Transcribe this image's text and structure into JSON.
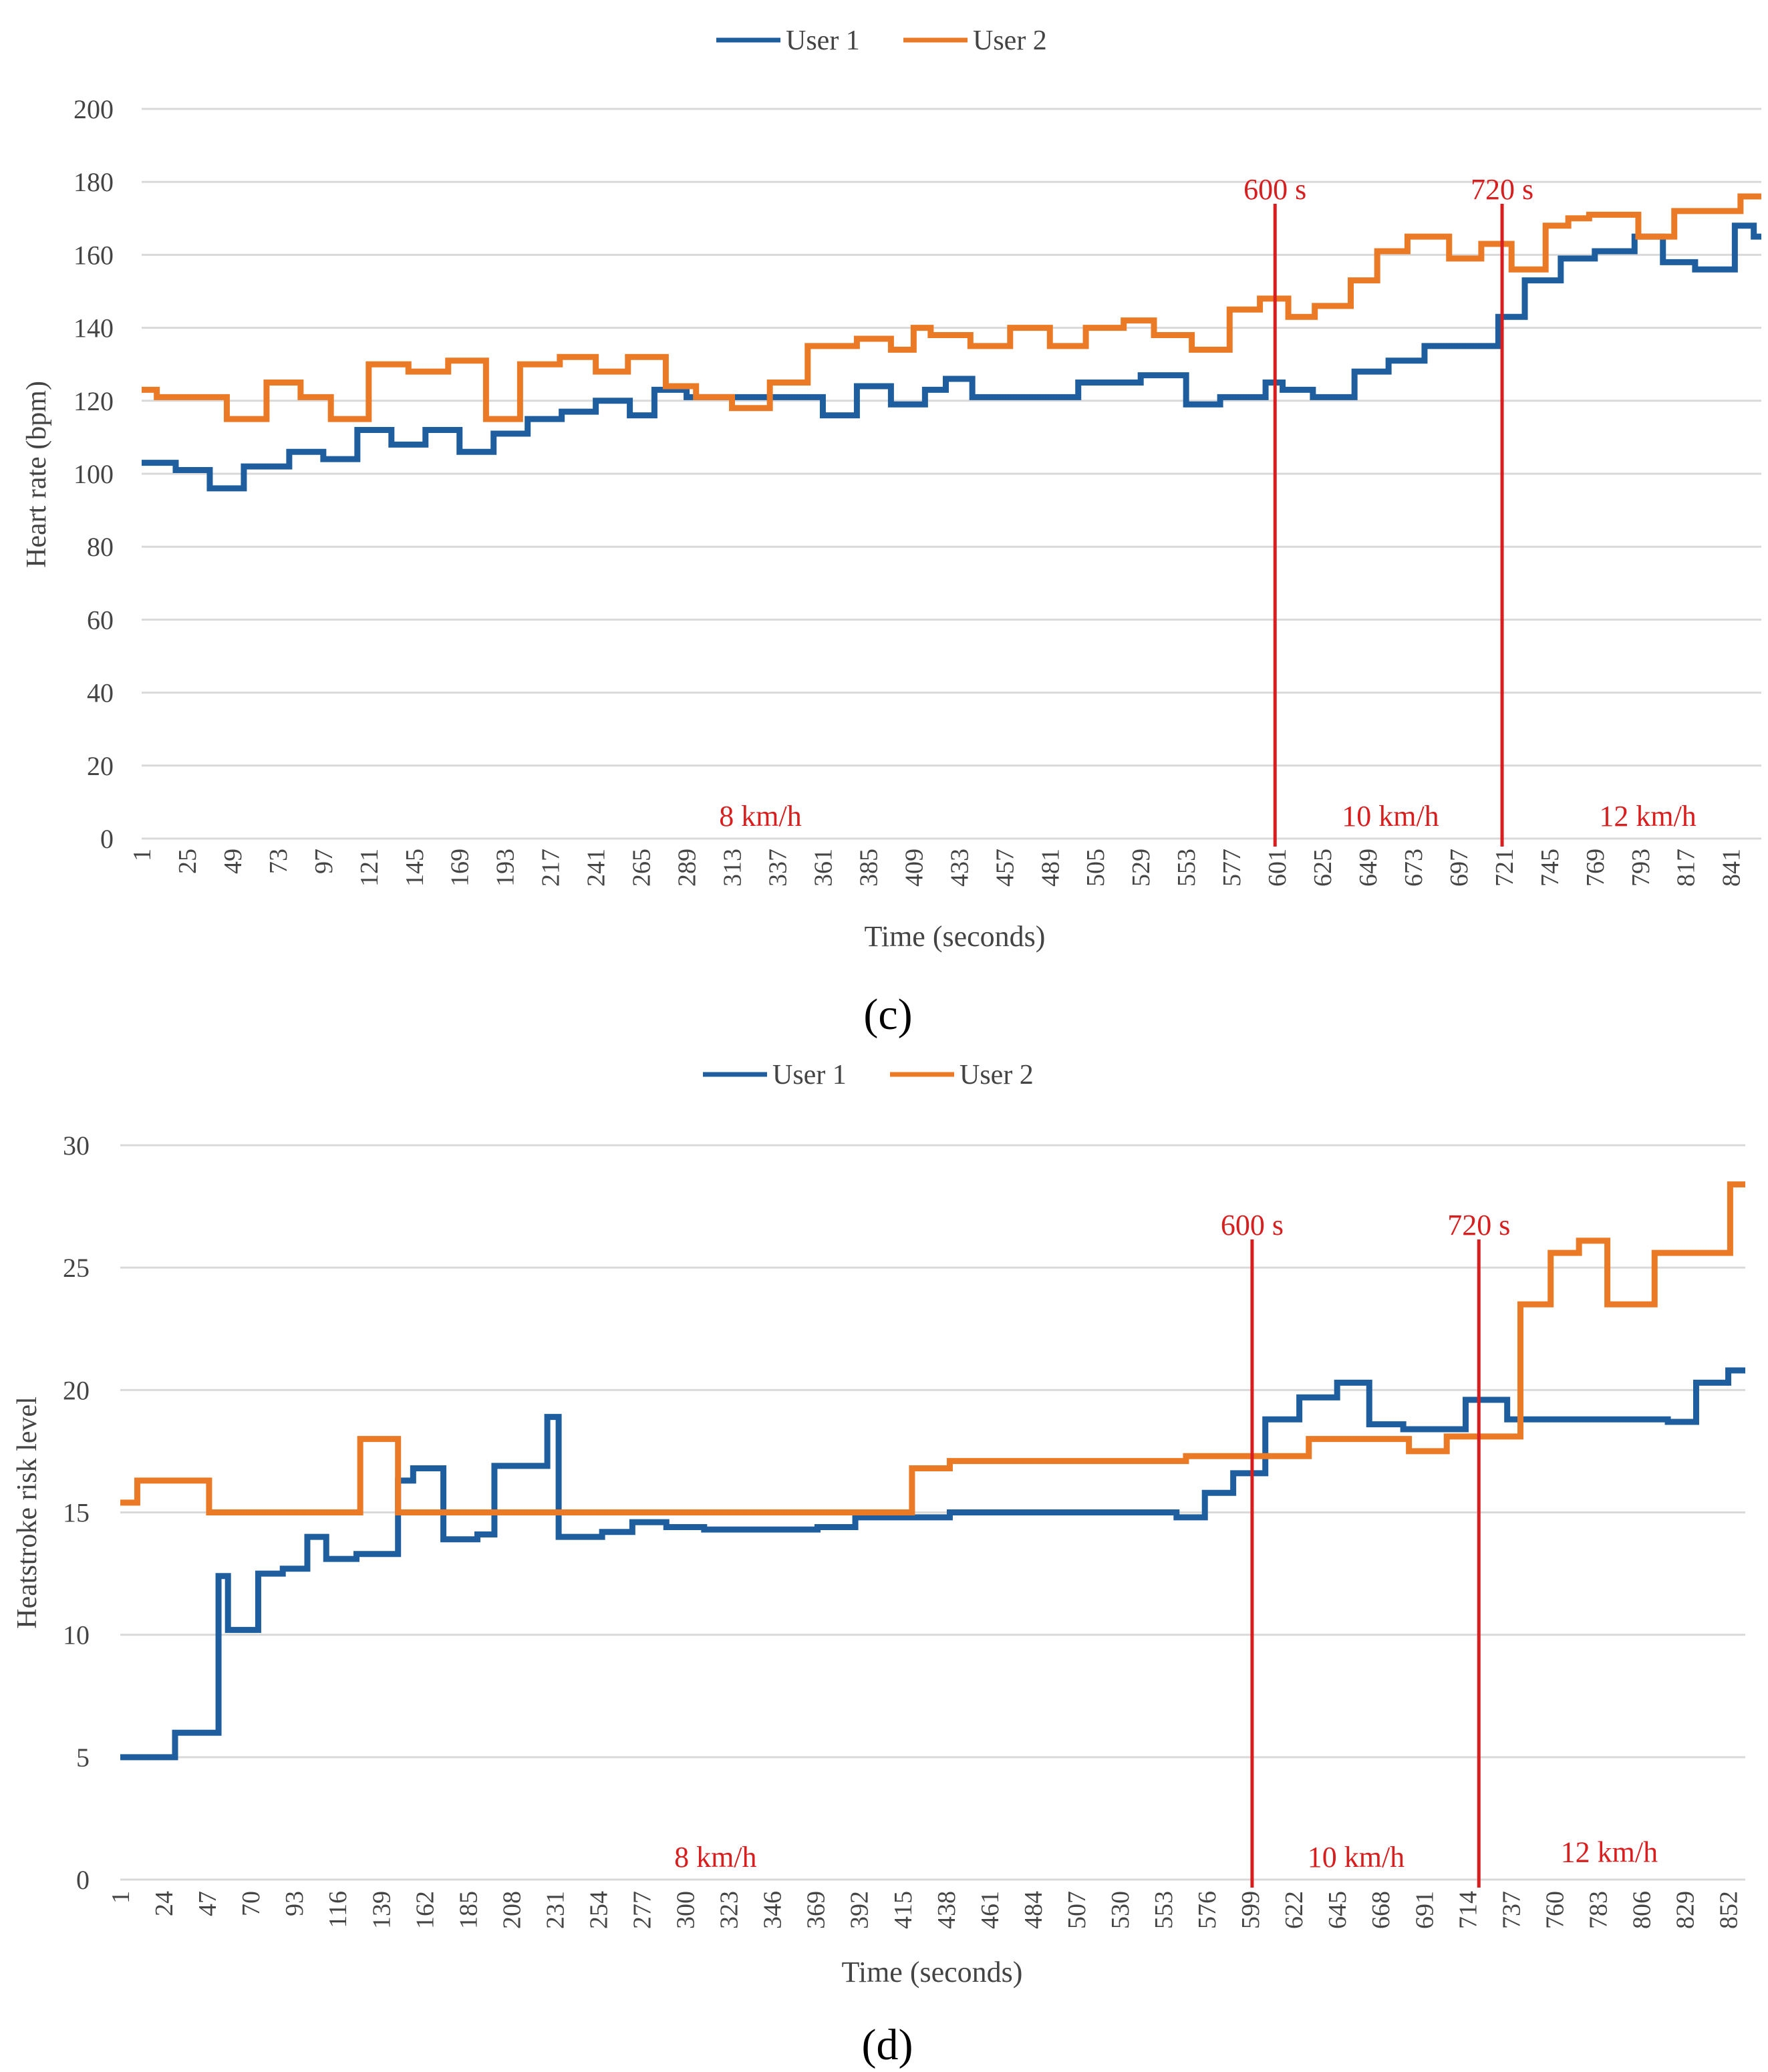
{
  "colors": {
    "user1": "#1F5E9E",
    "user2": "#EB7A26",
    "marker": "#D81E1E",
    "grid": "#D9D9D9",
    "axis_text": "#444444"
  },
  "chart_data": [
    {
      "panel_label": "(c)",
      "type": "line",
      "step": true,
      "xlabel": "Time (seconds)",
      "ylabel": "Heart rate (bpm)",
      "ylim": [
        0,
        200
      ],
      "yticks": [
        0,
        20,
        40,
        60,
        80,
        100,
        120,
        140,
        160,
        180,
        200
      ],
      "xlim": [
        1,
        857
      ],
      "xticks": [
        1,
        25,
        49,
        73,
        97,
        121,
        145,
        169,
        193,
        217,
        241,
        265,
        289,
        313,
        337,
        361,
        385,
        409,
        433,
        457,
        481,
        505,
        529,
        553,
        577,
        601,
        625,
        649,
        673,
        697,
        721,
        745,
        769,
        793,
        817,
        841
      ],
      "grid": true,
      "legend_position": "top-center",
      "series": [
        {
          "name": "User 1",
          "color_key": "user1",
          "x": [
            1,
            19,
            37,
            55,
            79,
            97,
            115,
            133,
            151,
            169,
            187,
            205,
            223,
            241,
            259,
            272,
            289,
            313,
            343,
            361,
            379,
            397,
            415,
            426,
            440,
            470,
            496,
            529,
            553,
            571,
            595,
            604,
            620,
            642,
            660,
            679,
            718,
            732,
            751,
            769,
            790,
            805,
            822,
            843,
            853,
            857
          ],
          "values": [
            103,
            101,
            96,
            102,
            106,
            104,
            112,
            108,
            112,
            106,
            111,
            115,
            117,
            120,
            116,
            123,
            121,
            121,
            121,
            116,
            124,
            119,
            123,
            126,
            121,
            121,
            125,
            127,
            119,
            121,
            125,
            123,
            121,
            128,
            131,
            135,
            143,
            153,
            159,
            161,
            165,
            158,
            156,
            168,
            165,
            165
          ]
        },
        {
          "name": "User 2",
          "color_key": "user2",
          "x": [
            1,
            9,
            46,
            67,
            85,
            101,
            121,
            142,
            163,
            183,
            201,
            222,
            241,
            258,
            278,
            294,
            313,
            333,
            353,
            379,
            397,
            409,
            418,
            439,
            460,
            481,
            500,
            520,
            536,
            556,
            576,
            592,
            607,
            621,
            640,
            654,
            670,
            692,
            709,
            725,
            743,
            755,
            766,
            792,
            801,
            811,
            846,
            857
          ],
          "values": [
            123,
            121,
            115,
            125,
            121,
            115,
            130,
            128,
            131,
            115,
            130,
            132,
            128,
            132,
            124,
            121,
            118,
            125,
            135,
            137,
            134,
            140,
            138,
            135,
            140,
            135,
            140,
            142,
            138,
            134,
            145,
            148,
            143,
            146,
            153,
            161,
            165,
            159,
            163,
            156,
            168,
            170,
            171,
            165,
            165,
            172,
            176,
            176
          ]
        }
      ],
      "markers": [
        {
          "x": 600,
          "label": "600 s"
        },
        {
          "x": 720,
          "label": "720 s"
        }
      ],
      "annotations": [
        {
          "x": 328,
          "y": 6,
          "text": "8 km/h"
        },
        {
          "x": 661,
          "y": 6,
          "text": "10 km/h"
        },
        {
          "x": 797,
          "y": 6,
          "text": "12 km/h"
        }
      ],
      "legend": [
        "User 1",
        "User 2"
      ]
    },
    {
      "panel_label": "(d)",
      "type": "line",
      "step": true,
      "xlabel": "Time (seconds)",
      "ylabel": "Heatstroke risk level",
      "ylim": [
        0,
        30
      ],
      "yticks": [
        0,
        5,
        10,
        15,
        20,
        25,
        30
      ],
      "xlim": [
        1,
        861
      ],
      "xticks": [
        1,
        24,
        47,
        70,
        93,
        116,
        139,
        162,
        185,
        208,
        231,
        254,
        277,
        300,
        323,
        346,
        369,
        392,
        415,
        438,
        461,
        484,
        507,
        530,
        553,
        576,
        599,
        622,
        645,
        668,
        691,
        714,
        737,
        760,
        783,
        806,
        829,
        852
      ],
      "grid": true,
      "legend_position": "top-center",
      "series": [
        {
          "name": "User 1",
          "color_key": "user1",
          "x": [
            1,
            30,
            53,
            56,
            58,
            74,
            87,
            100,
            110,
            126,
            148,
            150,
            156,
            172,
            190,
            199,
            227,
            233,
            256,
            272,
            290,
            310,
            370,
            390,
            440,
            500,
            560,
            575,
            590,
            607,
            625,
            645,
            662,
            680,
            713,
            735,
            820,
            823,
            835,
            852,
            861
          ],
          "values": [
            5.0,
            6.0,
            12.4,
            12.4,
            10.2,
            12.5,
            12.7,
            14.0,
            13.1,
            13.3,
            16.3,
            16.3,
            16.8,
            13.9,
            14.1,
            16.9,
            18.9,
            14.0,
            14.2,
            14.6,
            14.4,
            14.3,
            14.4,
            14.8,
            15.0,
            15.0,
            14.8,
            15.8,
            16.6,
            18.8,
            19.7,
            20.3,
            18.6,
            18.4,
            19.6,
            18.8,
            18.7,
            18.7,
            20.3,
            20.8,
            20.8
          ]
        },
        {
          "name": "User 2",
          "color_key": "user2",
          "x": [
            1,
            10,
            48,
            128,
            148,
            420,
            440,
            565,
            630,
            683,
            703,
            742,
            758,
            773,
            788,
            813,
            853,
            861
          ],
          "values": [
            15.4,
            16.3,
            15.0,
            18.0,
            15.0,
            16.8,
            17.1,
            17.3,
            18.0,
            17.5,
            18.1,
            23.5,
            25.6,
            26.1,
            23.5,
            25.6,
            28.4,
            28.4
          ]
        }
      ],
      "markers": [
        {
          "x": 600,
          "label": "600 s"
        },
        {
          "x": 720,
          "label": "720 s"
        }
      ],
      "annotations": [
        {
          "x": 316,
          "y": 0.9,
          "text": "8 km/h"
        },
        {
          "x": 655,
          "y": 0.9,
          "text": "10 km/h"
        },
        {
          "x": 789,
          "y": 1.1,
          "text": "12 km/h"
        }
      ],
      "legend": [
        "User 1",
        "User 2"
      ]
    }
  ]
}
